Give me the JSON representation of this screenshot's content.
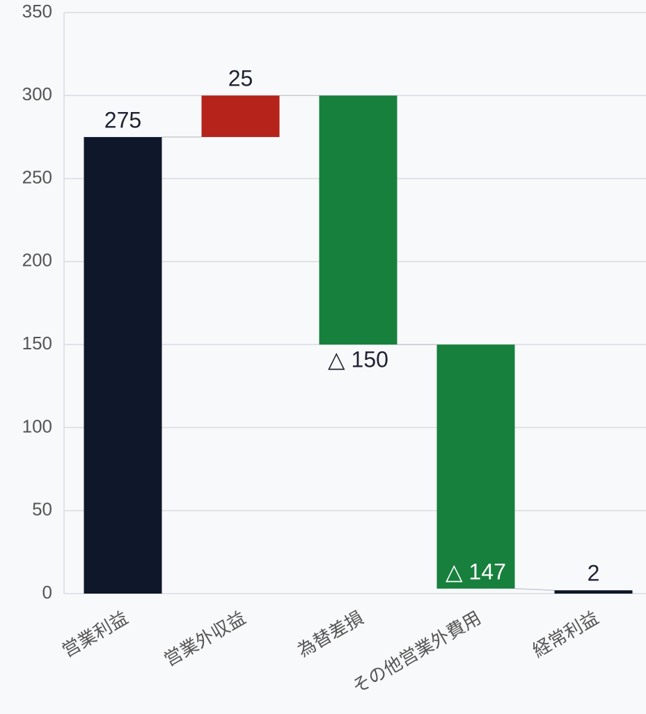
{
  "chart_data": {
    "type": "waterfall",
    "categories": [
      "営業利益",
      "営業外収益",
      "為替差損",
      "その他営業外費用",
      "経常利益"
    ],
    "values": [
      275,
      25,
      -150,
      -147,
      2
    ],
    "value_labels": [
      "275",
      "25",
      "△ 150",
      "△ 147",
      "2"
    ],
    "measure": [
      "total",
      "relative",
      "relative",
      "relative",
      "total"
    ],
    "colors": [
      "#0f172a",
      "#b5231b",
      "#17803d",
      "#17803d",
      "#0f172a"
    ],
    "ylim": [
      0,
      350
    ],
    "yticks": [
      0,
      50,
      100,
      150,
      200,
      250,
      300,
      350
    ],
    "grid": true
  }
}
